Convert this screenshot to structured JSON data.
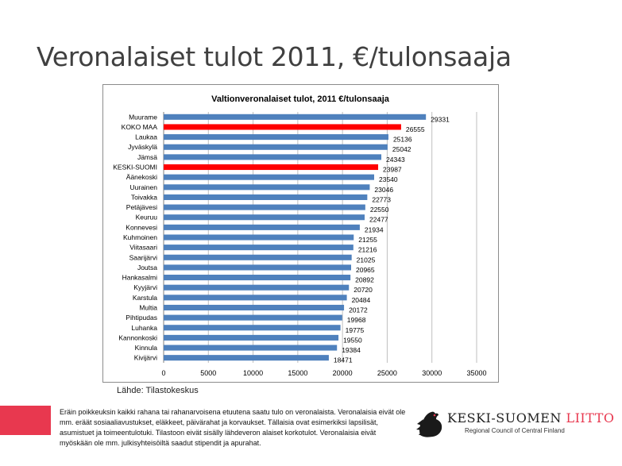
{
  "slide": {
    "title": "Veronalaiset tulot 2011, €/tulonsaaja",
    "source": "Lähde: Tilastokeskus",
    "footnote": "Eräin poikkeuksin kaikki rahana tai rahanarvoisena etuutena saatu tulo on veronalaista. Veronalaisia eivät ole mm. eräät sosiaaliavustukset, eläkkeet, päivärahat ja korvaukset. Tällaisia ovat esimerkiksi lapsilisät, asumistuet ja toimeentulotuki. Tilastoon eivät sisälly lähdeveron alaiset korkotulot. Veronalaisia eivät myöskään ole mm. julkisyhteisöiltä saadut stipendit ja apurahat."
  },
  "logo": {
    "name_part1": "KESKI-SUOMEN ",
    "name_part2": "LIITTO",
    "subtitle": "Regional Council of Central Finland",
    "icon": "capercaillie-bird-icon"
  },
  "colors": {
    "bar_default": "#4f81bd",
    "bar_highlight": "#ff0000",
    "accent": "#e8384f"
  },
  "chart_data": {
    "type": "bar",
    "orientation": "horizontal",
    "title": "Valtionveronalaiset tulot, 2011 €/tulonsaaja",
    "xlim": [
      0,
      35000
    ],
    "xticks": [
      0,
      5000,
      10000,
      15000,
      20000,
      25000,
      30000,
      35000
    ],
    "grid": true,
    "categories": [
      "Muurame",
      "KOKO MAA",
      "Laukaa",
      "Jyväskylä",
      "Jämsä",
      "KESKI-SUOMI",
      "Äänekoski",
      "Uurainen",
      "Toivakka",
      "Petäjävesi",
      "Keuruu",
      "Konnevesi",
      "Kuhmoinen",
      "Viitasaari",
      "Saarijärvi",
      "Joutsa",
      "Hankasalmi",
      "Kyyjärvi",
      "Karstula",
      "Multia",
      "Pihtipudas",
      "Luhanka",
      "Kannonkoski",
      "Kinnula",
      "Kivijärvi"
    ],
    "values": [
      29331,
      26555,
      25136,
      25042,
      24343,
      23987,
      23540,
      23046,
      22773,
      22550,
      22477,
      21934,
      21255,
      21216,
      21025,
      20965,
      20892,
      20720,
      20484,
      20172,
      19968,
      19775,
      19550,
      19384,
      18471
    ],
    "highlighted": [
      "KOKO MAA",
      "KESKI-SUOMI"
    ]
  }
}
